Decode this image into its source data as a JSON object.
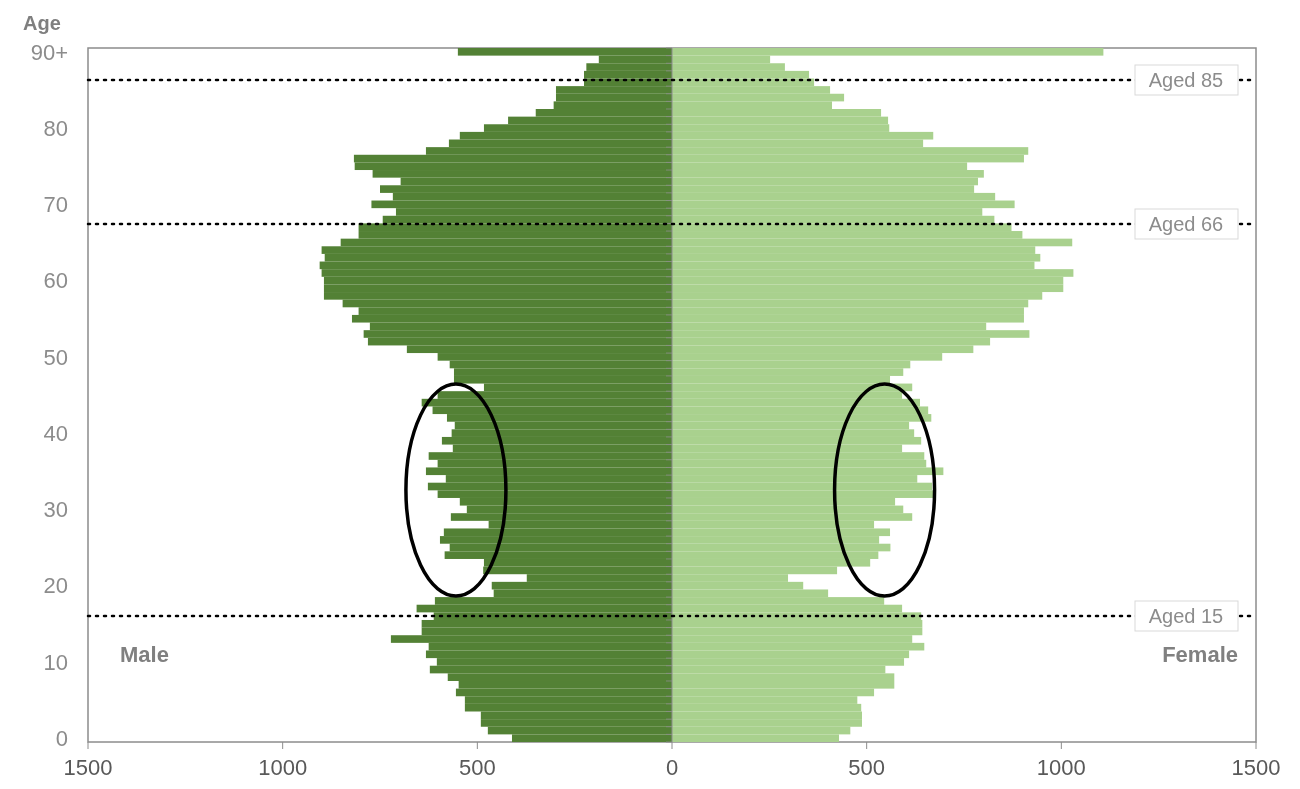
{
  "chart_data": {
    "type": "bar",
    "orientation": "horizontal",
    "ylabel": "Age",
    "categories": [
      "90+",
      null,
      null,
      null,
      null,
      null,
      null,
      null,
      null,
      null,
      "80",
      null,
      null,
      null,
      null,
      null,
      null,
      null,
      null,
      null,
      "70",
      null,
      null,
      null,
      null,
      null,
      null,
      null,
      null,
      null,
      "60",
      null,
      null,
      null,
      null,
      null,
      null,
      null,
      null,
      null,
      "50",
      null,
      null,
      null,
      null,
      null,
      null,
      null,
      null,
      null,
      "40",
      null,
      null,
      null,
      null,
      null,
      null,
      null,
      null,
      null,
      "30",
      null,
      null,
      null,
      null,
      null,
      null,
      null,
      null,
      null,
      "20",
      null,
      null,
      null,
      null,
      null,
      null,
      null,
      null,
      null,
      "10",
      null,
      null,
      null,
      null,
      null,
      null,
      null,
      null,
      null,
      "0"
    ],
    "series": [
      {
        "color": "#538135",
        "values": [
          -550,
          -188,
          -220,
          -226,
          -226,
          -298,
          -298,
          -304,
          -350,
          -421,
          -483,
          -545,
          -573,
          -632,
          -817,
          -815,
          -769,
          -697,
          -750,
          -717,
          -772,
          -709,
          -743,
          -805,
          -805,
          -851,
          -900,
          -892,
          -905,
          -900,
          -894,
          -894,
          -894,
          -846,
          -805,
          -822,
          -776,
          -792,
          -781,
          -681,
          -602,
          -571,
          -560,
          -560,
          -483,
          -602,
          -643,
          -615,
          -578,
          -558,
          -566,
          -591,
          -563,
          -625,
          -602,
          -632,
          -581,
          -627,
          -602,
          -545,
          -527,
          -568,
          -471,
          -586,
          -596,
          -571,
          -584,
          -483,
          -485,
          -373,
          -463,
          -458,
          -609,
          -656,
          -612,
          -643,
          -643,
          -722,
          -625,
          -632,
          -604,
          -622,
          -576,
          -548,
          -555,
          -532,
          -532,
          -491,
          -491,
          -473,
          -411
        ]
      },
      {
        "color": "#a9d18e",
        "values": [
          1108,
          252,
          290,
          352,
          365,
          406,
          442,
          411,
          537,
          555,
          558,
          671,
          645,
          915,
          904,
          758,
          801,
          786,
          776,
          830,
          880,
          797,
          828,
          872,
          900,
          1028,
          933,
          946,
          931,
          1031,
          1005,
          1005,
          951,
          915,
          904,
          904,
          807,
          918,
          817,
          774,
          694,
          612,
          594,
          560,
          617,
          591,
          637,
          658,
          666,
          609,
          622,
          640,
          591,
          648,
          653,
          697,
          630,
          668,
          671,
          573,
          594,
          617,
          519,
          560,
          532,
          561,
          530,
          509,
          424,
          298,
          337,
          401,
          545,
          591,
          640,
          643,
          643,
          617,
          648,
          609,
          596,
          548,
          571,
          571,
          519,
          476,
          486,
          488,
          488,
          458,
          429
        ]
      }
    ],
    "xlim": [
      -1500,
      1500
    ],
    "xticks": [
      {
        "value": -1500,
        "label": "1500"
      },
      {
        "value": -1000,
        "label": "1000"
      },
      {
        "value": -500,
        "label": "500"
      },
      0,
      500,
      1000,
      1500
    ],
    "annotations": [
      "Aged 85",
      "Aged 66",
      "Aged 15",
      "Male",
      "Female"
    ],
    "stacked": true,
    "grid": false
  }
}
